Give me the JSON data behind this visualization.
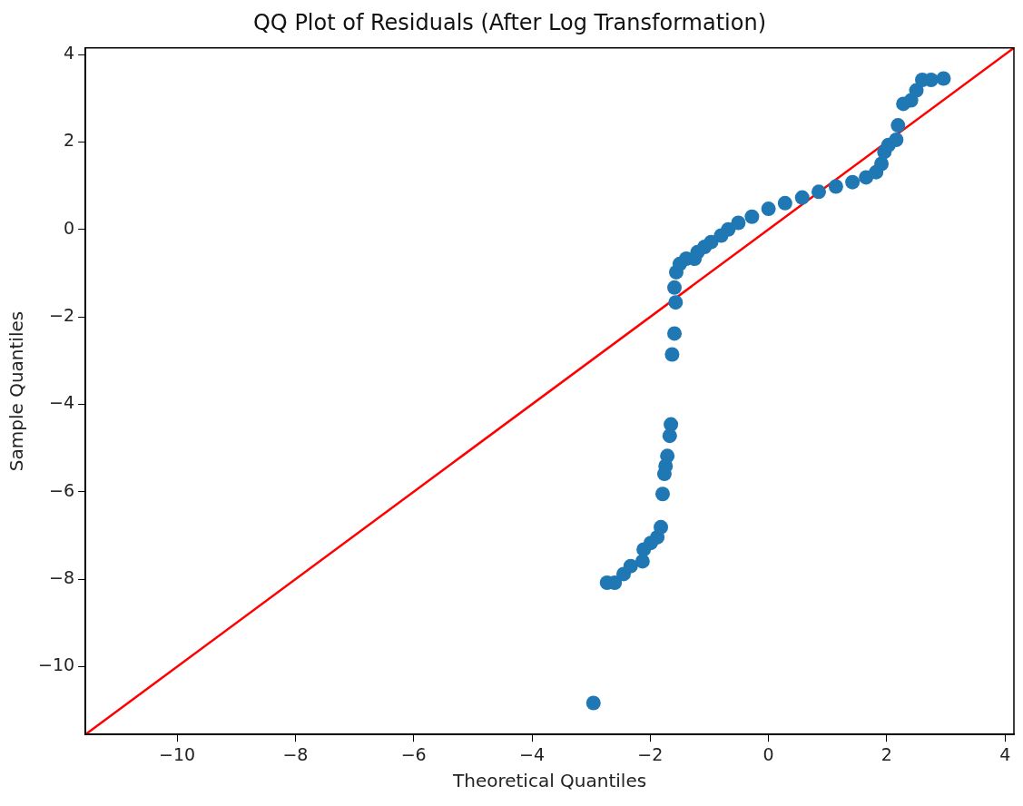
{
  "chart_data": {
    "type": "scatter",
    "title": "QQ Plot of Residuals (After Log Transformation)",
    "xlabel": "Theoretical Quantiles",
    "ylabel": "Sample Quantiles",
    "xlim": [
      -11.55,
      4.15
    ],
    "ylim": [
      -11.55,
      4.15
    ],
    "xticks": [
      -10,
      -8,
      -6,
      -4,
      -2,
      0,
      2,
      4
    ],
    "yticks": [
      -10,
      -8,
      -6,
      -4,
      -2,
      0,
      2,
      4
    ],
    "grid": false,
    "legend": false,
    "series": [
      {
        "type": "scatter",
        "color": "#1f77b4",
        "marker": "circle",
        "x": [
          -2.96,
          -2.73,
          -2.6,
          -2.45,
          -2.33,
          -2.13,
          -2.11,
          -1.99,
          -1.88,
          -1.82,
          -1.79,
          -1.76,
          -1.74,
          -1.71,
          -1.67,
          -1.65,
          -1.63,
          -1.59,
          -1.57,
          -1.59,
          -1.56,
          -1.5,
          -1.39,
          -1.25,
          -1.2,
          -1.08,
          -0.97,
          -0.8,
          -0.68,
          -0.51,
          -0.28,
          0,
          0.28,
          0.57,
          0.85,
          1.14,
          1.42,
          1.65,
          1.82,
          1.91,
          1.96,
          2.03,
          2.16,
          2.19,
          2.28,
          2.41,
          2.5,
          2.6,
          2.75,
          2.96
        ],
        "values": [
          -10.83,
          -8.08,
          -8.08,
          -7.88,
          -7.7,
          -7.59,
          -7.32,
          -7.17,
          -7.04,
          -6.81,
          -6.05,
          -5.59,
          -5.41,
          -5.18,
          -4.72,
          -4.46,
          -2.86,
          -2.38,
          -1.67,
          -1.33,
          -0.98,
          -0.79,
          -0.67,
          -0.67,
          -0.52,
          -0.4,
          -0.29,
          -0.14,
          0,
          0.15,
          0.29,
          0.47,
          0.6,
          0.73,
          0.86,
          0.98,
          1.08,
          1.19,
          1.31,
          1.5,
          1.77,
          1.93,
          2.05,
          2.38,
          2.87,
          2.95,
          3.18,
          3.42,
          3.42,
          3.45
        ]
      },
      {
        "type": "line",
        "color": "#ff0000",
        "marker": "none",
        "x": [
          -11.55,
          4.15
        ],
        "values": [
          -11.55,
          4.15
        ]
      }
    ]
  }
}
